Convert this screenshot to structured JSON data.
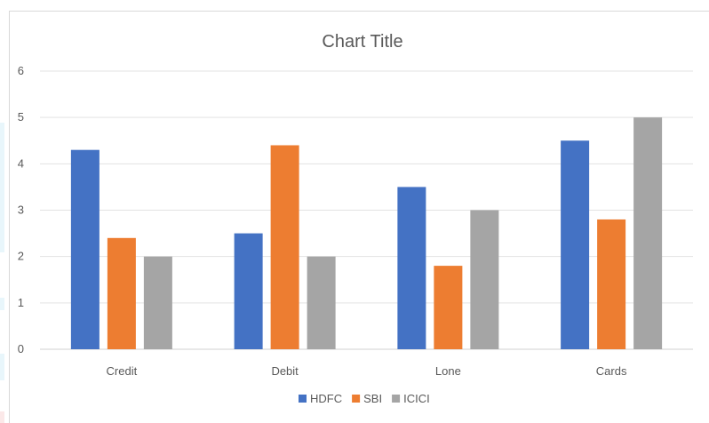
{
  "chart_data": {
    "type": "bar",
    "title": "Chart Title",
    "categories": [
      "Credit",
      "Debit",
      "Lone",
      "Cards"
    ],
    "series": [
      {
        "name": "HDFC",
        "values": [
          4.3,
          2.5,
          3.5,
          4.5
        ],
        "color": "#4472c4"
      },
      {
        "name": "SBI",
        "values": [
          2.4,
          4.4,
          1.8,
          2.8
        ],
        "color": "#ed7d31"
      },
      {
        "name": "ICICI",
        "values": [
          2,
          2,
          3,
          5
        ],
        "color": "#a5a5a5"
      }
    ],
    "ylim": [
      0,
      6
    ],
    "yticks": [
      "0",
      "1",
      "2",
      "3",
      "4",
      "5",
      "6"
    ],
    "grid": true,
    "legend_position": "bottom"
  }
}
